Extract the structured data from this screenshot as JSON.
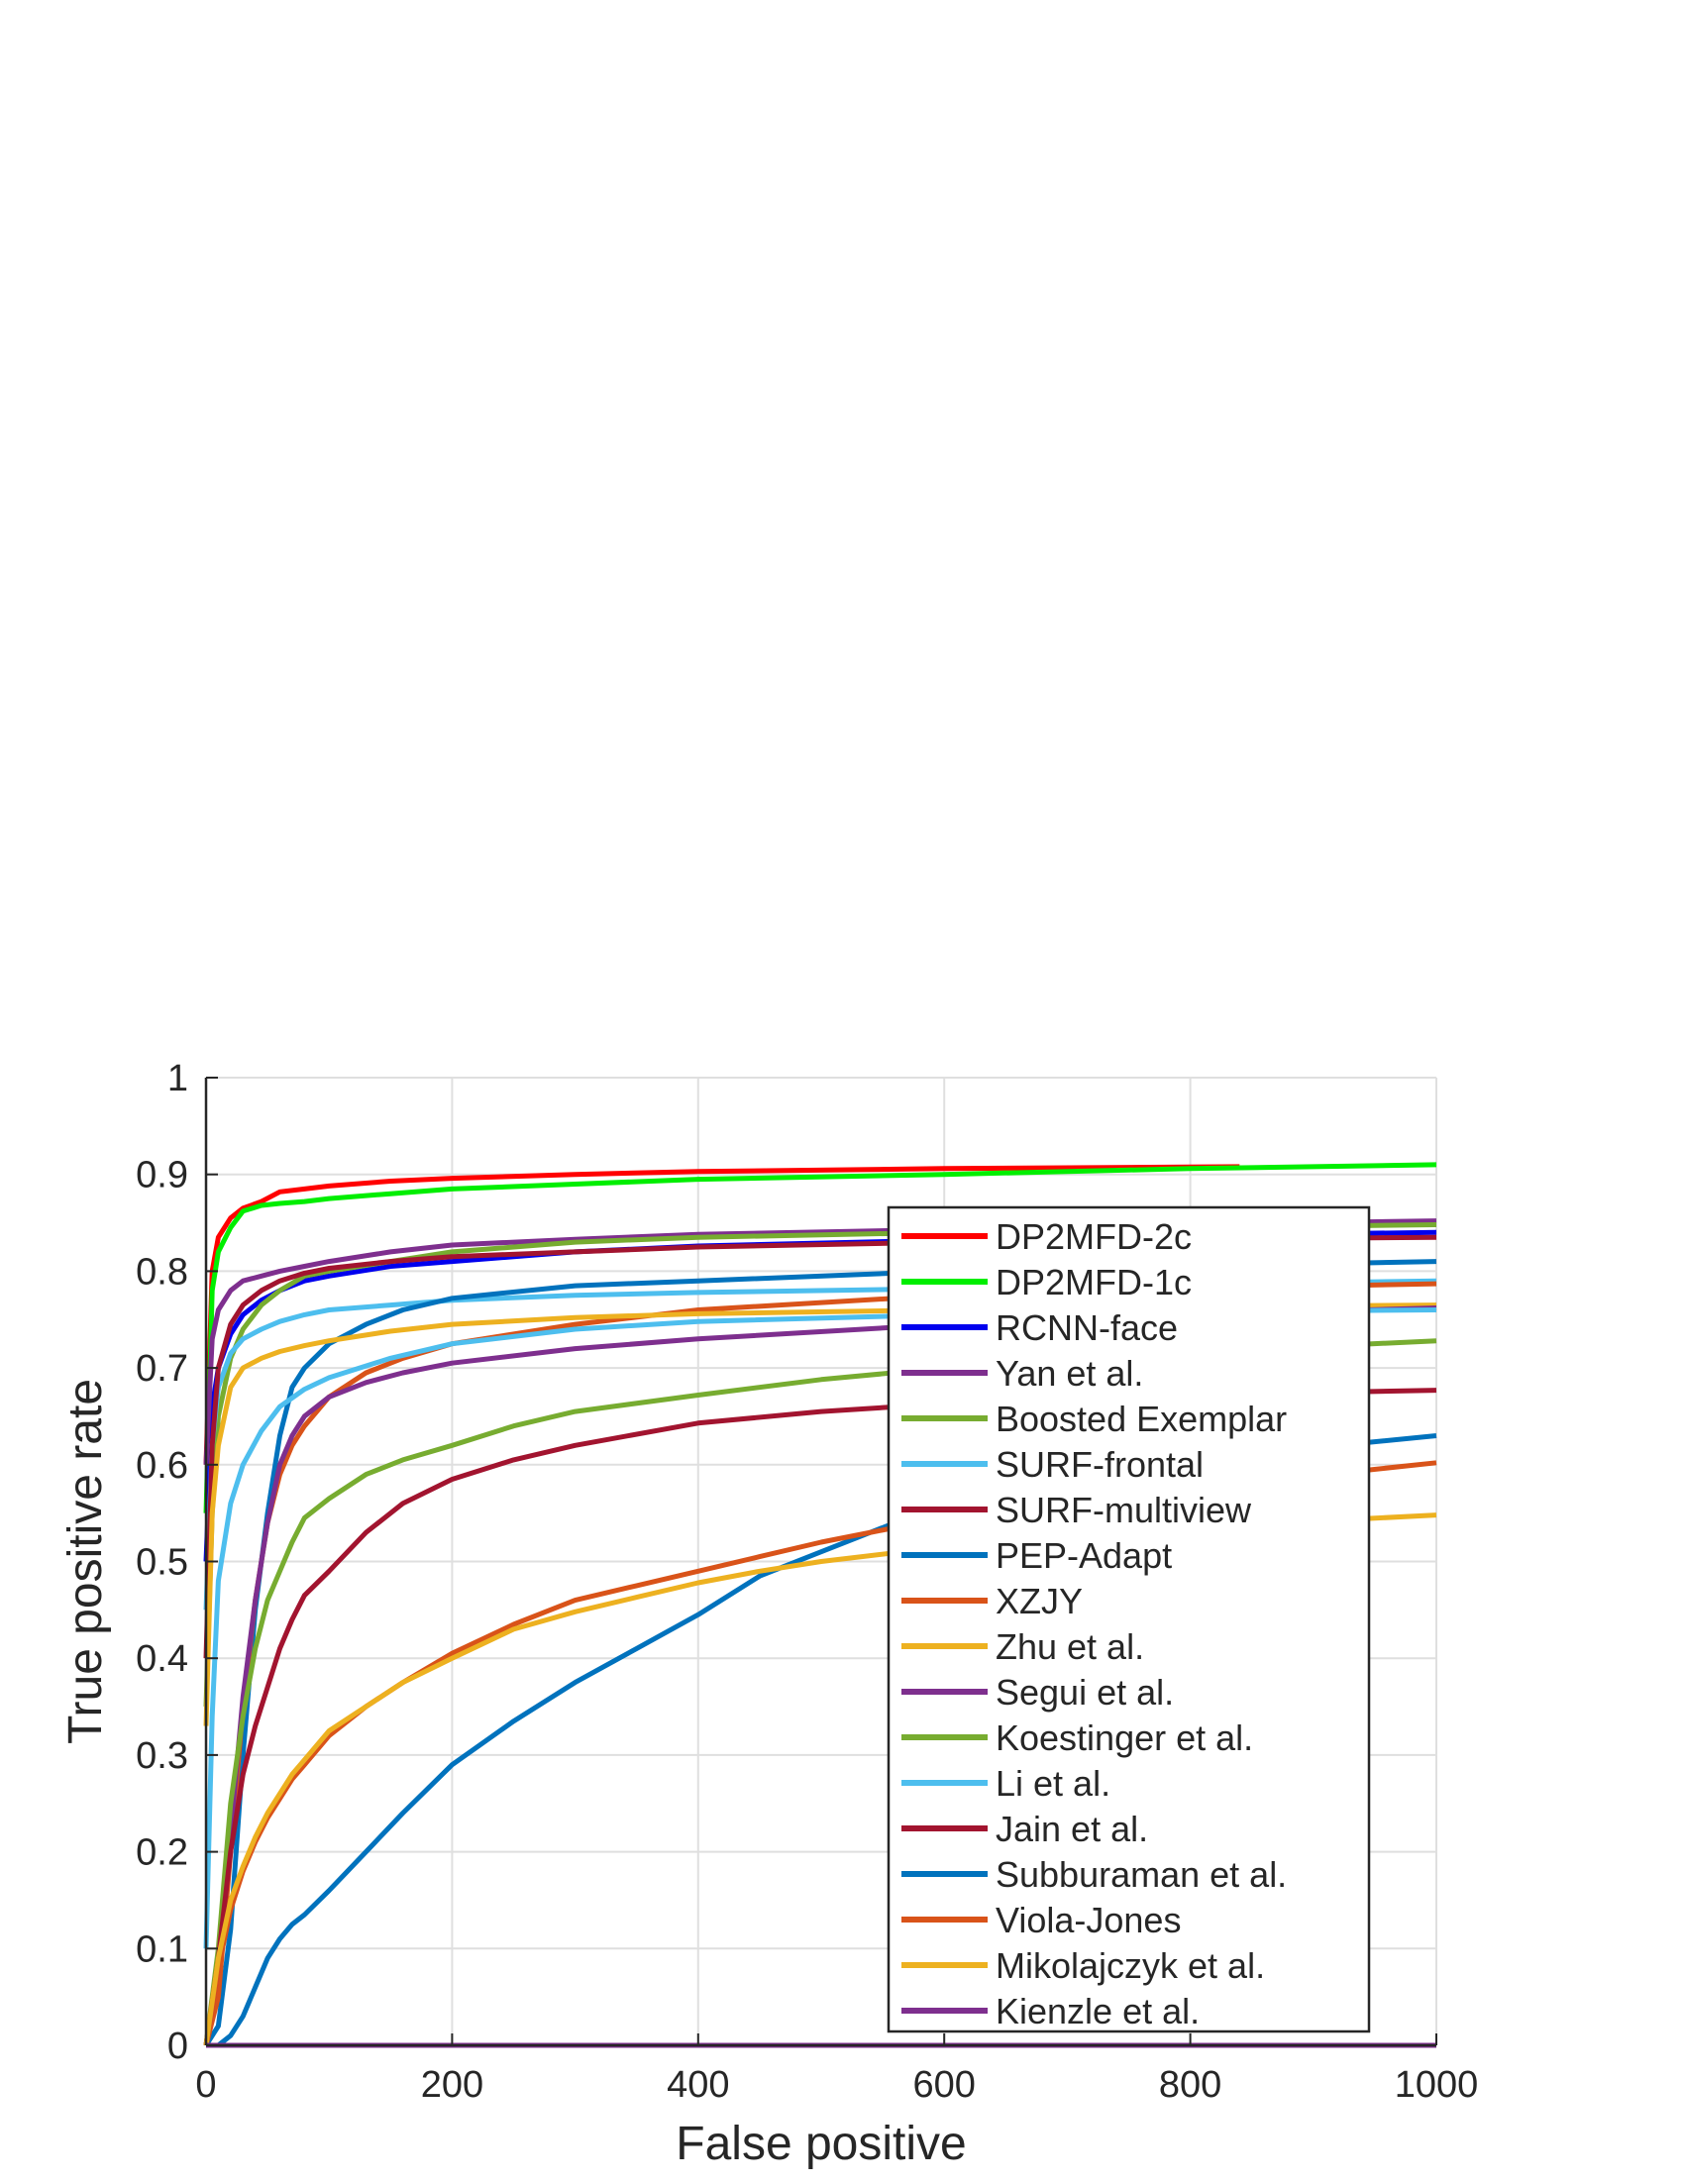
{
  "chart_data": {
    "type": "line",
    "title": "",
    "xlabel": "False positive",
    "ylabel": "True positive rate",
    "xlim": [
      0,
      1000
    ],
    "ylim": [
      0,
      1
    ],
    "xticks": [
      0,
      200,
      400,
      600,
      800,
      1000
    ],
    "xtick_labels": [
      "0",
      "200",
      "400",
      "600",
      "800",
      "1000"
    ],
    "yticks": [
      0,
      0.1,
      0.2,
      0.3,
      0.4,
      0.5,
      0.6,
      0.7,
      0.8,
      0.9,
      1
    ],
    "ytick_labels": [
      "0",
      "0.1",
      "0.2",
      "0.3",
      "0.4",
      "0.5",
      "0.6",
      "0.7",
      "0.8",
      "0.9",
      "1"
    ],
    "grid": true,
    "legend_position": "right",
    "series": [
      {
        "name": "DP2MFD-2c",
        "color": "#ff0000",
        "x": [
          0,
          5,
          10,
          20,
          30,
          45,
          60,
          80,
          100,
          150,
          200,
          300,
          400,
          600,
          840
        ],
        "y": [
          0.6,
          0.8,
          0.835,
          0.855,
          0.865,
          0.872,
          0.882,
          0.885,
          0.888,
          0.893,
          0.896,
          0.9,
          0.903,
          0.906,
          0.908
        ]
      },
      {
        "name": "DP2MFD-1c",
        "color": "#00ee00",
        "x": [
          0,
          5,
          10,
          20,
          30,
          45,
          60,
          80,
          100,
          150,
          200,
          300,
          400,
          600,
          800,
          1000
        ],
        "y": [
          0.55,
          0.78,
          0.82,
          0.845,
          0.862,
          0.868,
          0.87,
          0.872,
          0.875,
          0.88,
          0.885,
          0.89,
          0.895,
          0.9,
          0.906,
          0.91
        ]
      },
      {
        "name": "RCNN-face",
        "color": "#0000ee",
        "x": [
          0,
          5,
          10,
          20,
          30,
          45,
          60,
          80,
          100,
          150,
          200,
          300,
          400,
          600,
          800,
          1000
        ],
        "y": [
          0.5,
          0.66,
          0.7,
          0.735,
          0.755,
          0.77,
          0.78,
          0.79,
          0.795,
          0.805,
          0.81,
          0.82,
          0.826,
          0.832,
          0.837,
          0.84
        ]
      },
      {
        "name": "Yan et al.",
        "color": "#7e2f8e",
        "x": [
          0,
          5,
          10,
          20,
          30,
          45,
          60,
          80,
          100,
          150,
          200,
          300,
          400,
          600,
          800,
          1000
        ],
        "y": [
          0.6,
          0.73,
          0.76,
          0.78,
          0.79,
          0.795,
          0.8,
          0.805,
          0.81,
          0.82,
          0.827,
          0.833,
          0.838,
          0.843,
          0.848,
          0.852
        ]
      },
      {
        "name": "Boosted Exemplar",
        "color": "#77ac30",
        "x": [
          0,
          5,
          10,
          20,
          30,
          45,
          60,
          80,
          100,
          150,
          200,
          300,
          400,
          600,
          800,
          1000
        ],
        "y": [
          0.35,
          0.55,
          0.65,
          0.71,
          0.74,
          0.765,
          0.78,
          0.795,
          0.8,
          0.81,
          0.82,
          0.83,
          0.835,
          0.84,
          0.845,
          0.848
        ]
      },
      {
        "name": "SURF-frontal",
        "color": "#4dbeee",
        "x": [
          0,
          5,
          10,
          20,
          30,
          45,
          60,
          80,
          100,
          150,
          200,
          300,
          400,
          600,
          800,
          1000
        ],
        "y": [
          0.45,
          0.62,
          0.68,
          0.715,
          0.73,
          0.74,
          0.748,
          0.755,
          0.76,
          0.765,
          0.77,
          0.775,
          0.778,
          0.782,
          0.786,
          0.79
        ]
      },
      {
        "name": "SURF-multiview",
        "color": "#a2142f",
        "x": [
          0,
          5,
          10,
          20,
          30,
          45,
          60,
          80,
          100,
          150,
          200,
          300,
          400,
          600,
          800,
          1000
        ],
        "y": [
          0.4,
          0.62,
          0.7,
          0.745,
          0.765,
          0.78,
          0.79,
          0.798,
          0.803,
          0.81,
          0.815,
          0.82,
          0.825,
          0.83,
          0.833,
          0.835
        ]
      },
      {
        "name": "PEP-Adapt",
        "color": "#0072bd",
        "x": [
          0,
          10,
          20,
          30,
          40,
          50,
          60,
          70,
          80,
          100,
          130,
          160,
          200,
          300,
          400,
          600,
          800,
          1000
        ],
        "y": [
          0.0,
          0.02,
          0.12,
          0.3,
          0.45,
          0.55,
          0.63,
          0.68,
          0.7,
          0.725,
          0.745,
          0.76,
          0.772,
          0.785,
          0.79,
          0.8,
          0.805,
          0.81
        ]
      },
      {
        "name": "XZJY",
        "color": "#d95319",
        "x": [
          0,
          10,
          20,
          30,
          40,
          50,
          60,
          70,
          80,
          100,
          130,
          160,
          200,
          300,
          400,
          600,
          800,
          1000
        ],
        "y": [
          0.0,
          0.05,
          0.2,
          0.35,
          0.46,
          0.54,
          0.59,
          0.62,
          0.64,
          0.67,
          0.695,
          0.71,
          0.725,
          0.745,
          0.76,
          0.775,
          0.782,
          0.787
        ]
      },
      {
        "name": "Zhu et al.",
        "color": "#edb120",
        "x": [
          0,
          5,
          10,
          20,
          30,
          45,
          60,
          80,
          100,
          150,
          200,
          300,
          400,
          600,
          800,
          1000
        ],
        "y": [
          0.33,
          0.55,
          0.62,
          0.68,
          0.7,
          0.71,
          0.717,
          0.723,
          0.728,
          0.738,
          0.745,
          0.752,
          0.756,
          0.76,
          0.763,
          0.765
        ]
      },
      {
        "name": "Segui et al.",
        "color": "#7e2f8e",
        "x": [
          0,
          10,
          20,
          30,
          40,
          50,
          60,
          70,
          80,
          100,
          130,
          160,
          200,
          300,
          400,
          600,
          800,
          1000
        ],
        "y": [
          0.0,
          0.08,
          0.22,
          0.36,
          0.46,
          0.54,
          0.6,
          0.63,
          0.65,
          0.67,
          0.685,
          0.695,
          0.705,
          0.72,
          0.73,
          0.745,
          0.755,
          0.762
        ]
      },
      {
        "name": "Koestinger et al.",
        "color": "#77ac30",
        "x": [
          0,
          10,
          20,
          30,
          40,
          50,
          60,
          70,
          80,
          100,
          130,
          160,
          200,
          250,
          300,
          400,
          500,
          600,
          800,
          1000
        ],
        "y": [
          0.0,
          0.1,
          0.25,
          0.34,
          0.41,
          0.46,
          0.49,
          0.52,
          0.545,
          0.565,
          0.59,
          0.605,
          0.62,
          0.64,
          0.655,
          0.672,
          0.688,
          0.7,
          0.716,
          0.728
        ]
      },
      {
        "name": "Li et al.",
        "color": "#4dbeee",
        "x": [
          0,
          5,
          10,
          20,
          30,
          45,
          60,
          80,
          100,
          150,
          200,
          300,
          400,
          600,
          800,
          1000
        ],
        "y": [
          0.1,
          0.34,
          0.48,
          0.56,
          0.6,
          0.635,
          0.66,
          0.678,
          0.69,
          0.71,
          0.725,
          0.74,
          0.748,
          0.755,
          0.758,
          0.76
        ]
      },
      {
        "name": "Jain et al.",
        "color": "#a2142f",
        "x": [
          0,
          10,
          20,
          30,
          40,
          50,
          60,
          70,
          80,
          100,
          130,
          160,
          200,
          250,
          300,
          400,
          500,
          600,
          800,
          1000
        ],
        "y": [
          0.0,
          0.09,
          0.2,
          0.28,
          0.33,
          0.37,
          0.41,
          0.44,
          0.465,
          0.49,
          0.53,
          0.56,
          0.585,
          0.605,
          0.62,
          0.643,
          0.655,
          0.663,
          0.672,
          0.677
        ]
      },
      {
        "name": "Subburaman et al.",
        "color": "#0072bd",
        "x": [
          0,
          10,
          20,
          30,
          40,
          50,
          60,
          70,
          80,
          100,
          130,
          160,
          200,
          250,
          300,
          350,
          400,
          450,
          500,
          600,
          800,
          1000
        ],
        "y": [
          0.0,
          0.0,
          0.01,
          0.03,
          0.06,
          0.09,
          0.11,
          0.125,
          0.135,
          0.16,
          0.2,
          0.24,
          0.29,
          0.335,
          0.375,
          0.41,
          0.445,
          0.485,
          0.51,
          0.56,
          0.605,
          0.63
        ]
      },
      {
        "name": "Viola-Jones",
        "color": "#d95319",
        "x": [
          0,
          10,
          20,
          30,
          40,
          50,
          60,
          70,
          80,
          100,
          130,
          160,
          200,
          250,
          300,
          350,
          400,
          450,
          500,
          600,
          800,
          1000
        ],
        "y": [
          0.0,
          0.08,
          0.14,
          0.18,
          0.21,
          0.235,
          0.255,
          0.275,
          0.29,
          0.32,
          0.35,
          0.375,
          0.405,
          0.435,
          0.46,
          0.475,
          0.49,
          0.505,
          0.52,
          0.545,
          0.575,
          0.602
        ]
      },
      {
        "name": "Mikolajczyk et al.",
        "color": "#edb120",
        "x": [
          0,
          10,
          20,
          30,
          40,
          50,
          60,
          70,
          80,
          100,
          130,
          160,
          200,
          250,
          300,
          350,
          400,
          450,
          500,
          600,
          800,
          1000
        ],
        "y": [
          0.0,
          0.09,
          0.15,
          0.185,
          0.215,
          0.24,
          0.26,
          0.28,
          0.295,
          0.325,
          0.35,
          0.375,
          0.4,
          0.43,
          0.448,
          0.463,
          0.478,
          0.49,
          0.5,
          0.515,
          0.535,
          0.548
        ]
      },
      {
        "name": "Kienzle et al.",
        "color": "#7e2f8e",
        "x": [
          0,
          1000
        ],
        "y": [
          0.0,
          0.0
        ]
      }
    ]
  }
}
